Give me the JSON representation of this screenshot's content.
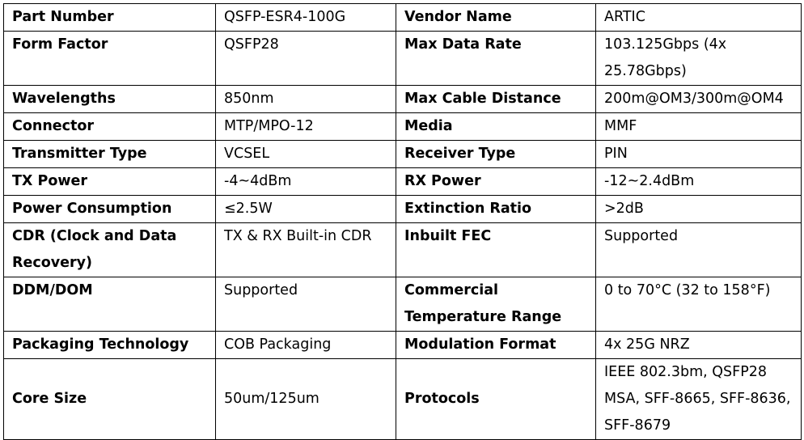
{
  "rows": [
    {
      "k1": "Part Number",
      "v1": "QSFP-ESR4-100G",
      "k2": "Vendor Name",
      "v2": "ARTIC"
    },
    {
      "k1": "Form Factor",
      "v1": "QSFP28",
      "k2": "Max Data Rate",
      "v2": "103.125Gbps (4x 25.78Gbps)"
    },
    {
      "k1": "Wavelengths",
      "v1": "850nm",
      "k2": "Max Cable Distance",
      "v2": "200m@OM3/300m@OM4"
    },
    {
      "k1": "Connector",
      "v1": "MTP/MPO-12",
      "k2": "Media",
      "v2": "MMF"
    },
    {
      "k1": "Transmitter Type",
      "v1": "VCSEL",
      "k2": "Receiver Type",
      "v2": "PIN"
    },
    {
      "k1": "TX Power",
      "v1": "-4~4dBm",
      "k2": "RX Power",
      "v2": "-12~2.4dBm"
    },
    {
      "k1": "Power Consumption",
      "v1": "≤2.5W",
      "k2": "Extinction Ratio",
      "v2": ">2dB"
    },
    {
      "k1": "CDR (Clock and Data Recovery)",
      "v1": "TX & RX Built-in CDR",
      "k2": "Inbuilt FEC",
      "v2": "Supported"
    },
    {
      "k1": "DDM/DOM",
      "v1": "Supported",
      "k2": "Commercial Temperature Range",
      "v2": "0 to 70°C (32 to 158°F)"
    },
    {
      "k1": "Packaging Technology",
      "v1": "COB Packaging",
      "k2": "Modulation Format",
      "v2": "4x 25G NRZ"
    },
    {
      "k1": "Core Size",
      "v1": "50um/125um",
      "k2": "Protocols",
      "v2": "IEEE 802.3bm, QSFP28 MSA, SFF-8665, SFF-8636, SFF-8679"
    }
  ]
}
